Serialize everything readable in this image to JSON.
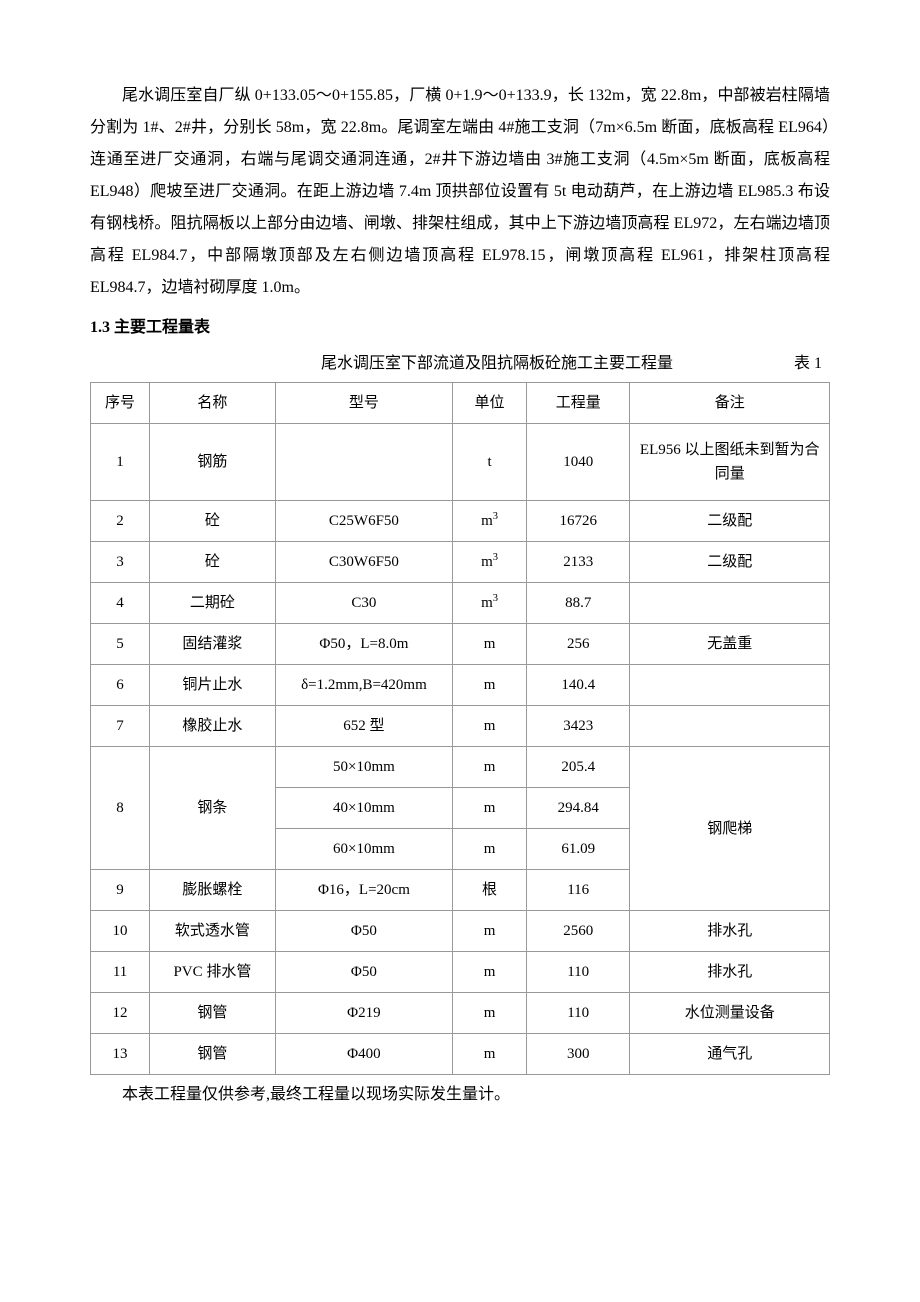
{
  "paragraph1": "尾水调压室自厂纵 0+133.05～0+155.85，厂横 0+1.9～0+133.9，长 132m，宽 22.8m，中部被岩柱隔墙分割为 1#、2#井，分别长 58m，宽 22.8m。尾调室左端由 4#施工支洞（7m×6.5m 断面，底板高程 EL964）连通至进厂交通洞，右端与尾调交通洞连通，2#井下游边墙由 3#施工支洞（4.5m×5m 断面，底板高程EL948）爬坡至进厂交通洞。在距上游边墙 7.4m 顶拱部位设置有 5t 电动葫芦，在上游边墙 EL985.3 布设有钢栈桥。阻抗隔板以上部分由边墙、闸墩、排架柱组成，其中上下游边墙顶高程 EL972，左右端边墙顶高程 EL984.7，中部隔墩顶部及左右侧边墙顶高程 EL978.15，闸墩顶高程 EL961，排架柱顶高程 EL984.7，边墙衬砌厚度 1.0m。",
  "section_heading": "1.3 主要工程量表",
  "table_title": "尾水调压室下部流道及阻抗隔板砼施工主要工程量",
  "table_label": "表 1",
  "table_note": "本表工程量仅供参考,最终工程量以现场实际发生量计。",
  "headers": {
    "seq": "序号",
    "name": "名称",
    "model": "型号",
    "unit": "单位",
    "qty": "工程量",
    "remark": "备注"
  },
  "rows": [
    {
      "seq": "1",
      "name": "钢筋",
      "model": "",
      "unit": "t",
      "qty": "1040",
      "remark": "EL956 以上图纸未到暂为合同量",
      "tall": true
    },
    {
      "seq": "2",
      "name": "砼",
      "model": "C25W6F50",
      "unit": "m³",
      "qty": "16726",
      "remark": "二级配"
    },
    {
      "seq": "3",
      "name": "砼",
      "model": "C30W6F50",
      "unit": "m³",
      "qty": "2133",
      "remark": "二级配"
    },
    {
      "seq": "4",
      "name": "二期砼",
      "model": "C30",
      "unit": "m³",
      "qty": "88.7",
      "remark": ""
    },
    {
      "seq": "5",
      "name": "固结灌浆",
      "model": "Φ50，L=8.0m",
      "unit": "m",
      "qty": "256",
      "remark": "无盖重"
    },
    {
      "seq": "6",
      "name": "铜片止水",
      "model": "δ=1.2mm,B=420mm",
      "unit": "m",
      "qty": "140.4",
      "remark": ""
    },
    {
      "seq": "7",
      "name": "橡胶止水",
      "model": "652 型",
      "unit": "m",
      "qty": "3423",
      "remark": ""
    }
  ],
  "row8": {
    "seq": "8",
    "name": "钢条",
    "variants": [
      {
        "model": "50×10mm",
        "unit": "m",
        "qty": "205.4"
      },
      {
        "model": "40×10mm",
        "unit": "m",
        "qty": "294.84"
      },
      {
        "model": "60×10mm",
        "unit": "m",
        "qty": "61.09"
      }
    ]
  },
  "row9": {
    "seq": "9",
    "name": "膨胀螺栓",
    "model": "Φ16，L=20cm",
    "unit": "根",
    "qty": "116",
    "group_remark": "钢爬梯"
  },
  "rows_tail": [
    {
      "seq": "10",
      "name": "软式透水管",
      "model": "Φ50",
      "unit": "m",
      "qty": "2560",
      "remark": "排水孔"
    },
    {
      "seq": "11",
      "name": "PVC 排水管",
      "model": "Φ50",
      "unit": "m",
      "qty": "110",
      "remark": "排水孔"
    },
    {
      "seq": "12",
      "name": "钢管",
      "model": "Φ219",
      "unit": "m",
      "qty": "110",
      "remark": "水位测量设备"
    },
    {
      "seq": "13",
      "name": "钢管",
      "model": "Φ400",
      "unit": "m",
      "qty": "300",
      "remark": "通气孔"
    }
  ],
  "unit_m3_html": "m<sup>3</sup>"
}
